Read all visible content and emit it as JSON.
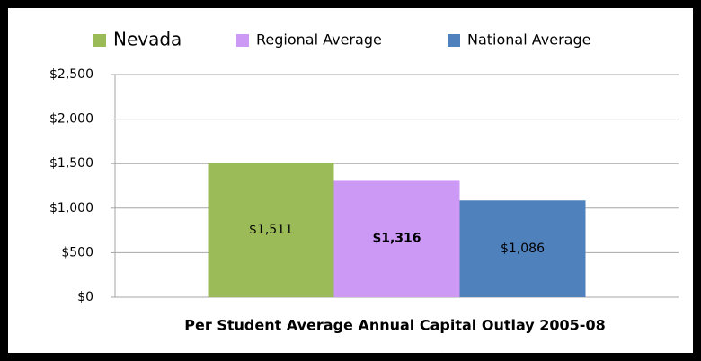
{
  "chart_data": {
    "type": "bar",
    "categories": [
      "Per Student Average Annual Capital Outlay 2005-08"
    ],
    "series": [
      {
        "name": "Nevada",
        "color": "#9bbb59",
        "label_color": "#000000",
        "values": [
          1511
        ],
        "value_labels": [
          "$1,511"
        ]
      },
      {
        "name": "Regional Average",
        "color": "#cc99f5",
        "label_color": "#7a0026",
        "values": [
          1316
        ],
        "value_labels": [
          "$1,316"
        ]
      },
      {
        "name": "National Average",
        "color": "#4f81bd",
        "label_color": "#000000",
        "values": [
          1086
        ],
        "value_labels": [
          "$1,086"
        ]
      }
    ],
    "ylim": [
      0,
      2500
    ],
    "yticks": [
      {
        "value": 0,
        "label": "$0"
      },
      {
        "value": 500,
        "label": "$500"
      },
      {
        "value": 1000,
        "label": "$1,000"
      },
      {
        "value": 1500,
        "label": "$1,500"
      },
      {
        "value": 2000,
        "label": "$2,000"
      },
      {
        "value": 2500,
        "label": "$2,500"
      }
    ],
    "grid": true,
    "legend": "top"
  }
}
